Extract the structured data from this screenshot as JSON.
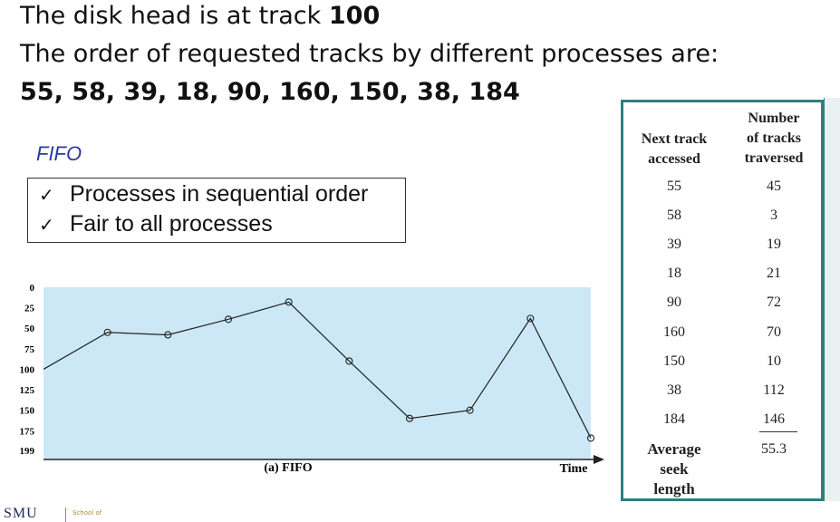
{
  "header": {
    "line1_prefix": "The disk head is at track ",
    "line1_bold": "100",
    "line2": "The order of requested tracks by different processes are:",
    "sequence": "55, 58, 39, 18, 90, 160, 150, 38, 184"
  },
  "fifo_label": "FIFO",
  "bullets": [
    {
      "check": "✓",
      "text": "Processes in sequential order"
    },
    {
      "check": "✓",
      "text": "Fair to all processes"
    }
  ],
  "chart_data": {
    "type": "line",
    "title": "(a) FIFO",
    "xlabel": "Time",
    "ylabel": "",
    "y_ticks": [
      "0",
      "25",
      "50",
      "75",
      "100",
      "125",
      "150",
      "175",
      "199"
    ],
    "ylim": [
      0,
      199
    ],
    "y_inverted": true,
    "start_track": 100,
    "x": [
      0,
      1,
      2,
      3,
      4,
      5,
      6,
      7,
      8,
      9
    ],
    "values": [
      100,
      55,
      58,
      39,
      18,
      90,
      160,
      150,
      38,
      184
    ],
    "background": "#cce8f6",
    "line_color": "#222222"
  },
  "table": {
    "header_col1": [
      "Next track",
      "accessed"
    ],
    "header_col2": [
      "Number",
      "of tracks",
      "traversed"
    ],
    "rows": [
      {
        "next": "55",
        "traversed": "45"
      },
      {
        "next": "58",
        "traversed": "3"
      },
      {
        "next": "39",
        "traversed": "19"
      },
      {
        "next": "18",
        "traversed": "21"
      },
      {
        "next": "90",
        "traversed": "72"
      },
      {
        "next": "160",
        "traversed": "70"
      },
      {
        "next": "150",
        "traversed": "10"
      },
      {
        "next": "38",
        "traversed": "112"
      },
      {
        "next": "184",
        "traversed": "146"
      }
    ],
    "average_label": [
      "Average",
      "seek",
      "length"
    ],
    "average_value": "55.3",
    "border_color": "#2f7f80"
  },
  "footer": {
    "logo": "SMU",
    "school": "School of"
  }
}
